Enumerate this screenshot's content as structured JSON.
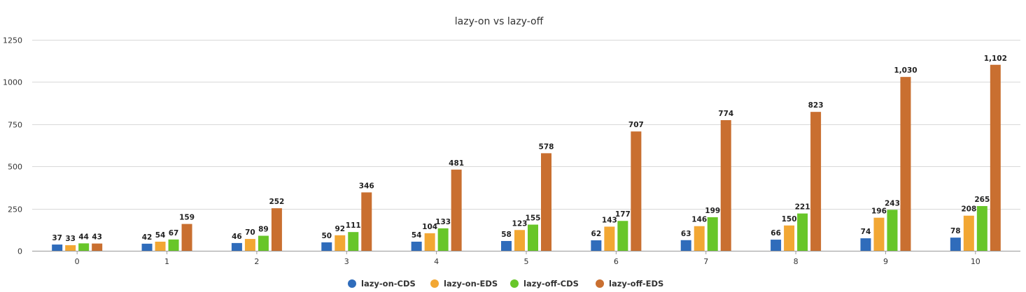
{
  "chart_data": {
    "type": "bar",
    "title": "lazy-on vs lazy-off",
    "xlabel": "",
    "ylabel": "",
    "categories": [
      "0",
      "1",
      "2",
      "3",
      "4",
      "5",
      "6",
      "7",
      "8",
      "9",
      "10"
    ],
    "ylim": [
      0,
      1250
    ],
    "yticks": [
      0,
      250,
      500,
      750,
      1000,
      1250
    ],
    "ytick_labels": [
      "0",
      "250",
      "500",
      "750",
      "1000",
      "1250"
    ],
    "grid": true,
    "legend_position": "bottom-center",
    "series": [
      {
        "name": "lazy-on-CDS",
        "color": "#2f6cbb",
        "values": [
          37,
          42,
          46,
          50,
          54,
          58,
          62,
          63,
          66,
          74,
          78
        ],
        "labels": [
          "37",
          "42",
          "46",
          "50",
          "54",
          "58",
          "62",
          "63",
          "66",
          "74",
          "78"
        ]
      },
      {
        "name": "lazy-on-EDS",
        "color": "#f2a733",
        "values": [
          33,
          54,
          70,
          92,
          104,
          123,
          143,
          146,
          150,
          196,
          208
        ],
        "labels": [
          "33",
          "54",
          "70",
          "92",
          "104",
          "123",
          "143",
          "146",
          "150",
          "196",
          "208"
        ]
      },
      {
        "name": "lazy-off-CDS",
        "color": "#68c629",
        "values": [
          44,
          67,
          89,
          111,
          133,
          155,
          177,
          199,
          221,
          243,
          265
        ],
        "labels": [
          "44",
          "67",
          "89",
          "111",
          "133",
          "155",
          "177",
          "199",
          "221",
          "243",
          "265"
        ]
      },
      {
        "name": "lazy-off-EDS",
        "color": "#c96f30",
        "values": [
          43,
          159,
          252,
          346,
          481,
          578,
          707,
          774,
          823,
          1030,
          1102
        ],
        "labels": [
          "43",
          "159",
          "252",
          "346",
          "481",
          "578",
          "707",
          "774",
          "823",
          "1,030",
          "1,102"
        ]
      }
    ]
  }
}
